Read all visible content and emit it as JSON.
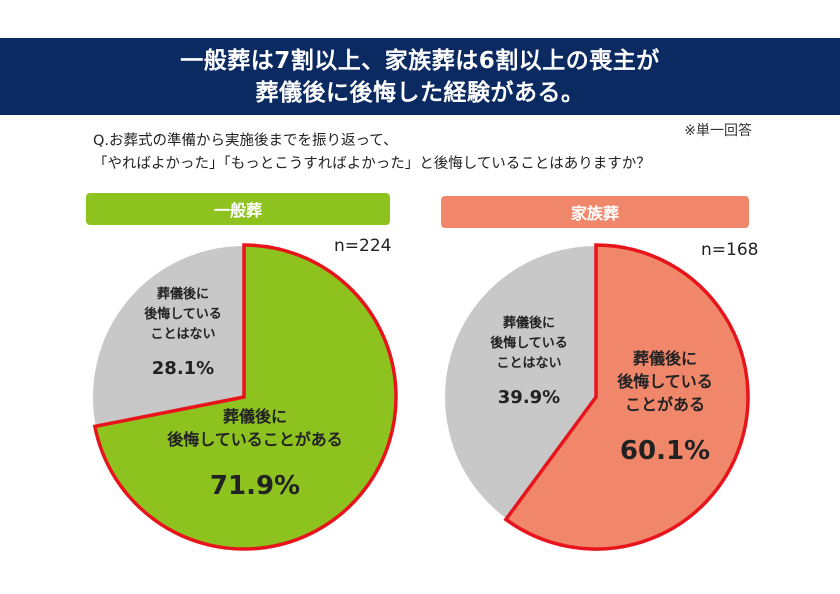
{
  "banner": {
    "line1": "一般葬は7割以上、家族葬は6割以上の喪主が",
    "line2": "葬儀後に後悔した経験がある。"
  },
  "note": "※単一回答",
  "question": {
    "line1": "Q.お葬式の準備から実施後までを振り返って、",
    "line2": "「やればよかった」「もっとこうすればよかった」と後悔していることはありますか？"
  },
  "colors": {
    "banner": "#0b2a62",
    "green": "#8dc21f",
    "salmon": "#f0876a",
    "grey": "#c8c8c8",
    "red_outline": "#e8141c"
  },
  "chart_data": [
    {
      "type": "pie",
      "title": "一般葬",
      "n_label": "n=224",
      "slices": [
        {
          "label": "葬儀後に後悔していることがある",
          "value": 71.9,
          "display": "71.9%",
          "color": "#8dc21f",
          "highlight": true
        },
        {
          "label": "葬儀後に後悔していることはない",
          "value": 28.1,
          "display": "28.1%",
          "color": "#c8c8c8",
          "highlight": false
        }
      ],
      "text_lines": {
        "highlight": [
          "葬儀後に",
          "後悔していることがある"
        ],
        "other": [
          "葬儀後に",
          "後悔している",
          "ことはない"
        ]
      }
    },
    {
      "type": "pie",
      "title": "家族葬",
      "n_label": "n=168",
      "slices": [
        {
          "label": "葬儀後に後悔していることがある",
          "value": 60.1,
          "display": "60.1%",
          "color": "#f0876a",
          "highlight": true
        },
        {
          "label": "葬儀後に後悔していることはない",
          "value": 39.9,
          "display": "39.9%",
          "color": "#c8c8c8",
          "highlight": false
        }
      ],
      "text_lines": {
        "highlight": [
          "葬儀後に",
          "後悔している",
          "ことがある"
        ],
        "other": [
          "葬儀後に",
          "後悔している",
          "ことはない"
        ]
      }
    }
  ]
}
